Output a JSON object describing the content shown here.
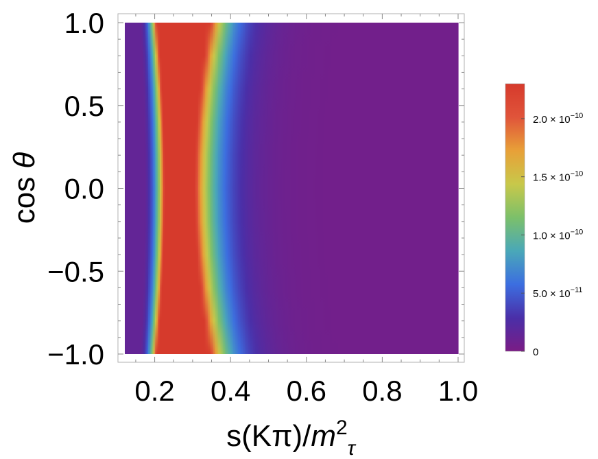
{
  "chart_data": {
    "type": "heatmap",
    "title": "",
    "xlabel": "s(Kπ)/m²τ",
    "xlabel_parts": {
      "base": "s(Kπ)/",
      "var": "m",
      "sup": "2",
      "sub": "τ"
    },
    "ylabel": "cos θ",
    "ylabel_parts": {
      "prefix": "cos ",
      "var": "θ"
    },
    "xlim": [
      0.1212,
      1.0
    ],
    "ylim": [
      -1.0,
      1.0
    ],
    "x_ticks": [
      0.2,
      0.4,
      0.6,
      0.8,
      1.0
    ],
    "x_tick_labels": [
      "0.2",
      "0.4",
      "0.6",
      "0.8",
      "1.0"
    ],
    "y_ticks": [
      1.0,
      0.5,
      0.0,
      -0.5,
      -1.0
    ],
    "y_tick_labels": [
      "1.0",
      "0.5",
      "0.0",
      "−0.5",
      "−1.0"
    ],
    "colorbar": {
      "range": [
        0,
        2.3e-10
      ],
      "ticks": [
        {
          "value": 0,
          "label": "0"
        },
        {
          "value": 5e-11,
          "mantissa": "5.0",
          "times": "×",
          "base": "10",
          "exp": "−11"
        },
        {
          "value": 1e-10,
          "mantissa": "1.0",
          "times": "×",
          "base": "10",
          "exp": "−10"
        },
        {
          "value": 1.5e-10,
          "mantissa": "1.5",
          "times": "×",
          "base": "10",
          "exp": "−10"
        },
        {
          "value": 2e-10,
          "mantissa": "2.0",
          "times": "×",
          "base": "10",
          "exp": "−10"
        }
      ],
      "colormap": [
        "#7a1c85",
        "#4a2fa8",
        "#3c6ee0",
        "#4aa8b8",
        "#7cc06a",
        "#c8c84a",
        "#e8a038",
        "#e0543a",
        "#d63a2c"
      ]
    },
    "description_of_surface": {
      "peak_region_x_at_cos0": [
        0.226,
        0.305
      ],
      "peak_region_x_at_cos_pm1": [
        0.205,
        0.345
      ],
      "saturated_color": "#d63a2c"
    }
  }
}
